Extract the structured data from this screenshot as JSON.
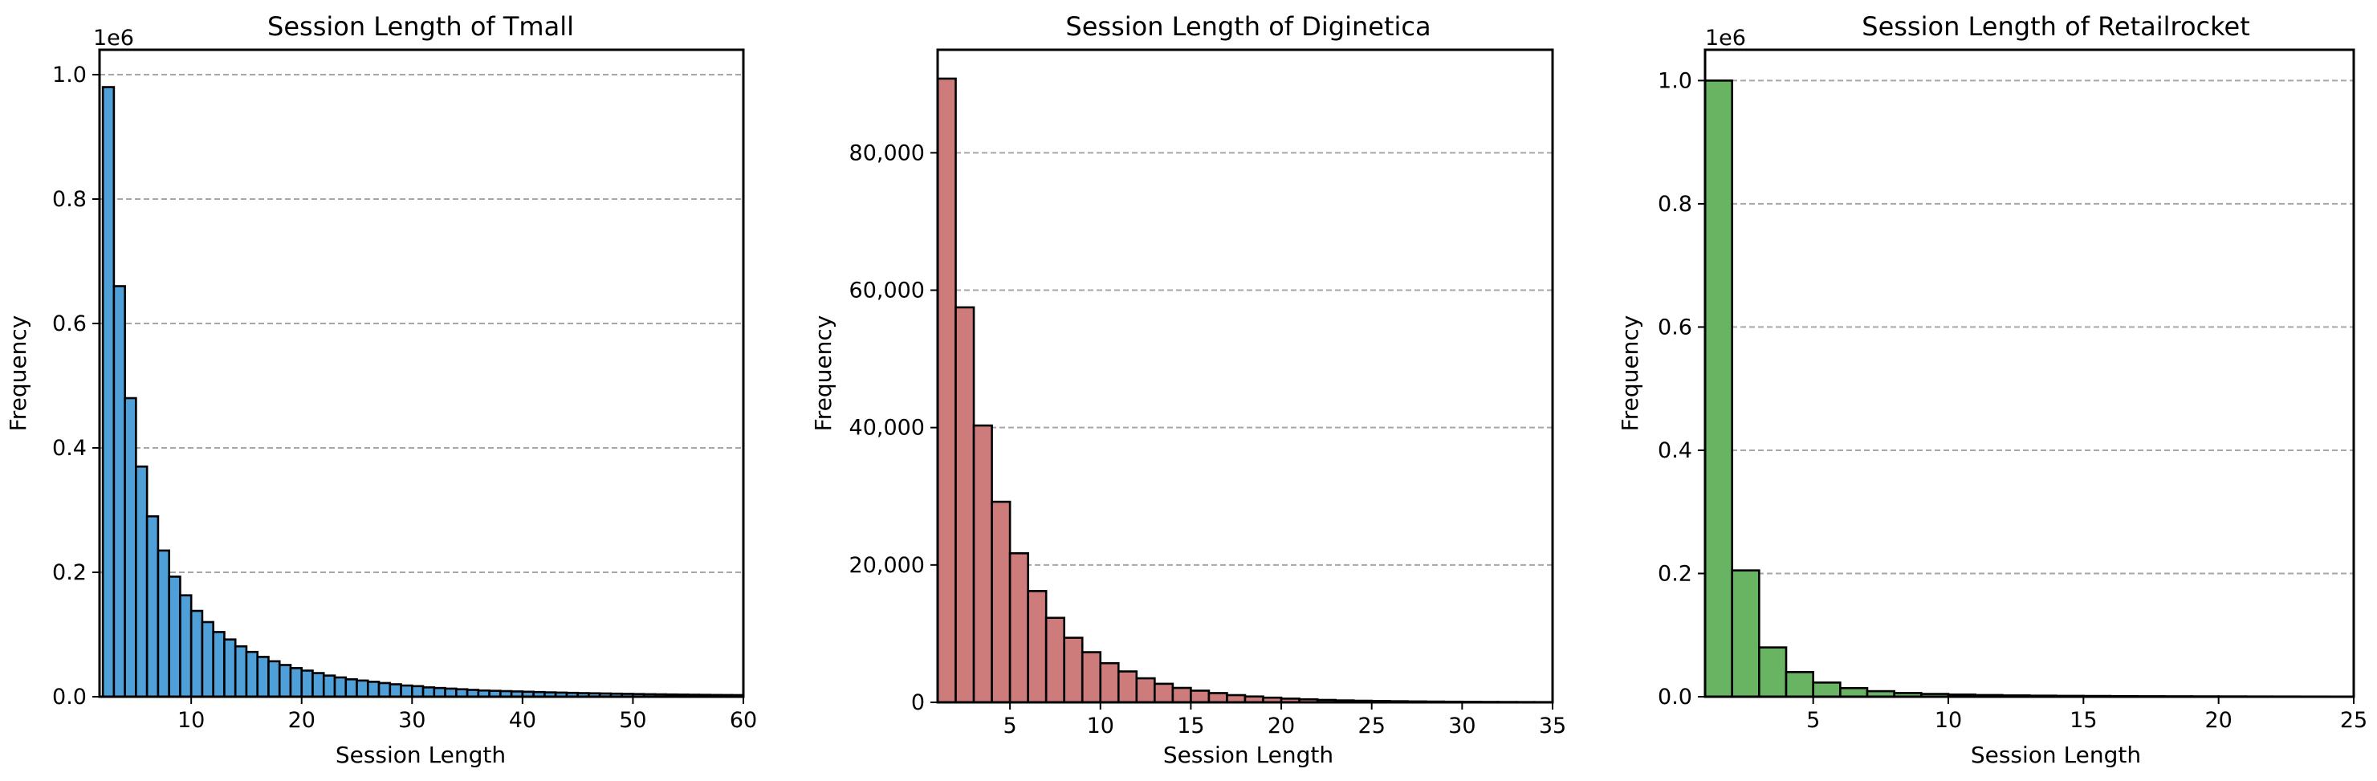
{
  "chart_data": [
    {
      "type": "bar",
      "title": "Session Length of Tmall",
      "xlabel": "Session Length",
      "ylabel": "Frequency",
      "color": "#4f9fd8",
      "edge_color": "#000000",
      "grid": "y-dashed",
      "x_start": 2,
      "bin_width": 1,
      "xlim": [
        1.7,
        60
      ],
      "ylim": [
        0,
        1.04
      ],
      "y_offset_label": "1e6",
      "x_ticks": [
        10,
        20,
        30,
        40,
        50,
        60
      ],
      "x_tick_labels": [
        "10",
        "20",
        "30",
        "40",
        "50",
        "60"
      ],
      "y_ticks": [
        0,
        0.2,
        0.4,
        0.6,
        0.8,
        1.0
      ],
      "y_tick_labels": [
        "0.0",
        "0.2",
        "0.4",
        "0.6",
        "0.8",
        "1.0"
      ],
      "values": [
        0.98,
        0.66,
        0.48,
        0.37,
        0.29,
        0.235,
        0.193,
        0.163,
        0.138,
        0.12,
        0.104,
        0.092,
        0.081,
        0.072,
        0.064,
        0.057,
        0.051,
        0.046,
        0.042,
        0.038,
        0.034,
        0.031,
        0.028,
        0.026,
        0.024,
        0.022,
        0.02,
        0.018,
        0.017,
        0.015,
        0.014,
        0.013,
        0.012,
        0.011,
        0.01,
        0.0095,
        0.009,
        0.0085,
        0.008,
        0.0075,
        0.007,
        0.0066,
        0.0062,
        0.0058,
        0.0055,
        0.0052,
        0.0049,
        0.0046,
        0.0043,
        0.004,
        0.0038,
        0.0036,
        0.0034,
        0.0032,
        0.003,
        0.0028,
        0.0027,
        0.0026
      ]
    },
    {
      "type": "bar",
      "title": "Session Length of Diginetica",
      "xlabel": "Session Length",
      "ylabel": "Frequency",
      "color": "#cd7b7b",
      "edge_color": "#000000",
      "grid": "y-dashed",
      "x_start": 1,
      "bin_width": 1,
      "xlim": [
        1,
        35
      ],
      "ylim": [
        0,
        95000
      ],
      "y_offset_label": "",
      "x_ticks": [
        5,
        10,
        15,
        20,
        25,
        30,
        35
      ],
      "x_tick_labels": [
        "5",
        "10",
        "15",
        "20",
        "25",
        "30",
        "35"
      ],
      "y_ticks": [
        0,
        20000,
        40000,
        60000,
        80000
      ],
      "y_tick_labels": [
        "0",
        "20,000",
        "40,000",
        "60,000",
        "80,000"
      ],
      "values": [
        90800,
        57500,
        40300,
        29200,
        21700,
        16200,
        12300,
        9400,
        7300,
        5700,
        4500,
        3500,
        2700,
        2100,
        1700,
        1350,
        1050,
        850,
        680,
        540,
        440,
        350,
        280,
        230,
        190,
        160,
        130,
        110,
        90,
        75,
        62,
        52,
        44,
        38
      ]
    },
    {
      "type": "bar",
      "title": "Session Length of Retailrocket",
      "xlabel": "Session Length",
      "ylabel": "Frequency",
      "color": "#69b462",
      "edge_color": "#000000",
      "grid": "y-dashed",
      "x_start": 1,
      "bin_width": 1,
      "xlim": [
        1,
        25
      ],
      "ylim": [
        0,
        1.05
      ],
      "y_offset_label": "1e6",
      "x_ticks": [
        5,
        10,
        15,
        20,
        25
      ],
      "x_tick_labels": [
        "5",
        "10",
        "15",
        "20",
        "25"
      ],
      "y_ticks": [
        0,
        0.2,
        0.4,
        0.6,
        0.8,
        1.0
      ],
      "y_tick_labels": [
        "0.0",
        "0.2",
        "0.4",
        "0.6",
        "0.8",
        "1.0"
      ],
      "values": [
        1.0,
        0.205,
        0.08,
        0.04,
        0.023,
        0.014,
        0.009,
        0.006,
        0.0045,
        0.0035,
        0.0027,
        0.0021,
        0.0017,
        0.0014,
        0.0012,
        0.001,
        0.0008,
        0.0007,
        0.0006,
        0.0005,
        0.0004,
        0.00035,
        0.0003,
        0.00025
      ]
    }
  ]
}
